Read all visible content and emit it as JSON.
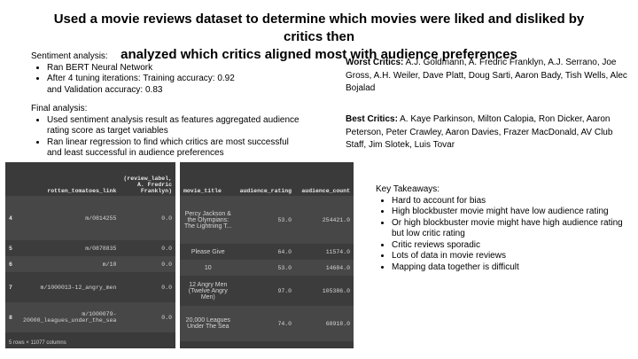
{
  "title_line1": "Used a movie reviews dataset to determine which movies were liked and disliked by critics then",
  "title_line2": "analyzed which critics aligned most with audience preferences",
  "sentiment": {
    "heading": "Sentiment analysis:",
    "b1": "Ran BERT Neural Network",
    "b2": "After 4 tuning iterations:  Training accuracy: 0.92",
    "b2b": "and  Validation accuracy: 0.83"
  },
  "final": {
    "heading": "Final analysis:",
    "b1": "Used sentiment analysis result as features aggregated audience rating score as target variables",
    "b2": "Ran linear regression to find which critics are most successful and least successful in audience preferences"
  },
  "worst": {
    "label": "Worst Critics:",
    "names": " A.J. Goldmann, A. Fredric Franklyn, A.J. Serrano, Joe Gross, A.H. Weiler, Dave Platt, Doug Sarti, Aaron Bady, Tish Wells, Alec Bojalad"
  },
  "best": {
    "label": "Best Critics:",
    "names": " A. Kaye Parkinson, Milton Calopia, Ron Dicker, Aaron Peterson, Peter Crawley, Aaron Davies, Frazer MacDonald, AV Club Staff, Jim Slotek,  Luis Tovar"
  },
  "table1": {
    "h1": "rotten_tomatoes_link",
    "h2": "(review_label, A. Fredric Franklyn)",
    "rows": [
      {
        "idx": "4",
        "link": "m/0814255",
        "val": "0.0"
      },
      {
        "idx": "5",
        "link": "m/0878835",
        "val": "0.0"
      },
      {
        "idx": "6",
        "link": "m/10",
        "val": "0.0"
      },
      {
        "idx": "7",
        "link": "m/1000013-12_angry_men",
        "val": "0.0"
      },
      {
        "idx": "8",
        "link": "m/1000079-20000_leagues_under_the_sea",
        "val": "0.0"
      }
    ],
    "footer": "5 rows × 11077 columns"
  },
  "table2": {
    "h1": "movie_title",
    "h2": "audience_rating",
    "h3": "audience_count",
    "rows": [
      {
        "title": "Percy Jackson & the Olympians: The Lightning T...",
        "rating": "53.0",
        "count": "254421.0"
      },
      {
        "title": "Please Give",
        "rating": "64.0",
        "count": "11574.0"
      },
      {
        "title": "10",
        "rating": "53.0",
        "count": "14684.0"
      },
      {
        "title": "12 Angry Men (Twelve Angry Men)",
        "rating": "97.0",
        "count": "105386.0"
      },
      {
        "title": "20,000 Leagues Under The Sea",
        "rating": "74.0",
        "count": "68918.0"
      }
    ]
  },
  "takeaways": {
    "heading": "Key Takeaways:",
    "items": [
      "Hard to account for bias",
      "High blockbuster movie might have low audience rating",
      "Or high blockbuster movie might have high audience rating but low critic rating",
      "Critic reviews sporadic",
      "Lots of data in movie reviews",
      "Mapping data together is difficult"
    ]
  }
}
